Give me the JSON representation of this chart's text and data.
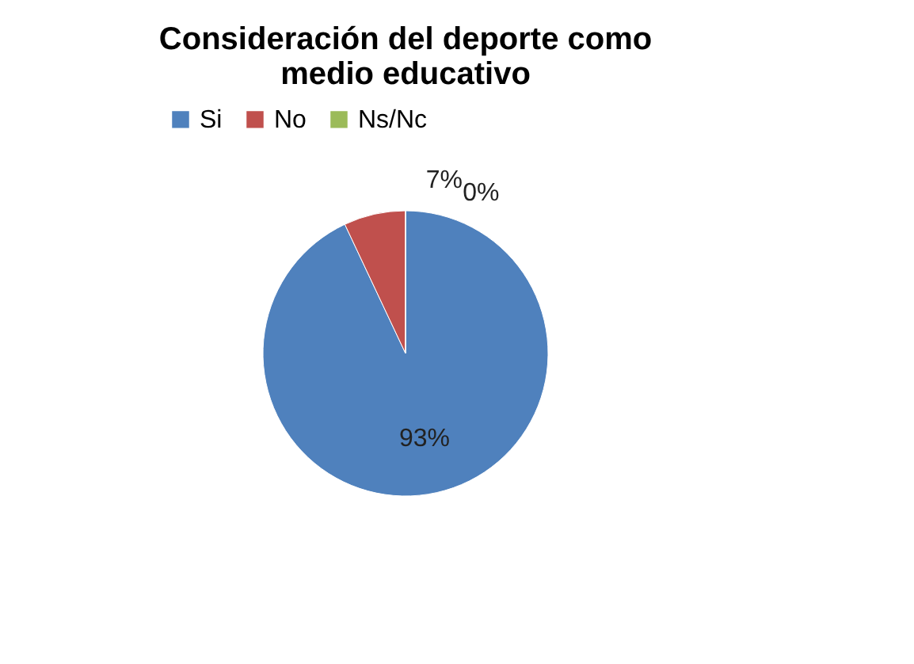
{
  "chart_data": {
    "type": "pie",
    "title": "Consideración del deporte como medio educativo",
    "categories": [
      "Si",
      "No",
      "Ns/Nc"
    ],
    "values": [
      93,
      7,
      0
    ],
    "colors": [
      "#4f81bd",
      "#c0504d",
      "#9bbb59"
    ],
    "value_labels": [
      "93%",
      "7%",
      "0%"
    ],
    "legend": "top"
  }
}
